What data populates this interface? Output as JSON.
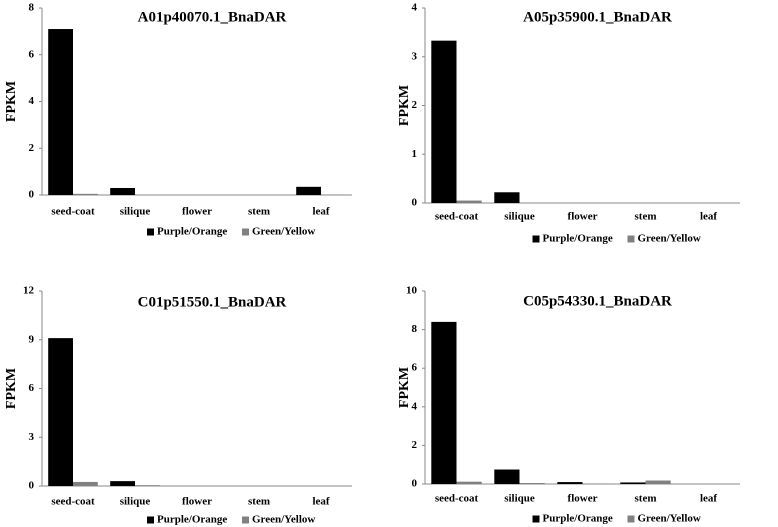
{
  "chart_data": [
    {
      "type": "bar",
      "title": "A01p40070.1_BnaDAR",
      "y_label": "FPKM",
      "categories": [
        "seed-coat",
        "silique",
        "flower",
        "stem",
        "leaf"
      ],
      "series": [
        {
          "name": "Purple/Orange",
          "color": "#000000",
          "values": [
            7.1,
            0.3,
            0,
            0,
            0.35
          ]
        },
        {
          "name": "Green/Yellow",
          "color": "#808080",
          "values": [
            0.05,
            0,
            0,
            0,
            0.02
          ]
        }
      ],
      "ylim": [
        0,
        8
      ],
      "yticks": [
        0,
        2,
        4,
        6,
        8
      ],
      "legend": "bottom"
    },
    {
      "type": "bar",
      "title": "A05p35900.1_BnaDAR",
      "y_label": "FPKM",
      "categories": [
        "seed-coat",
        "silique",
        "flower",
        "stem",
        "leaf"
      ],
      "series": [
        {
          "name": "Purple/Orange",
          "color": "#000000",
          "values": [
            3.33,
            0.22,
            0,
            0,
            0
          ]
        },
        {
          "name": "Green/Yellow",
          "color": "#808080",
          "values": [
            0.05,
            0,
            0,
            0,
            0
          ]
        }
      ],
      "ylim": [
        0,
        4
      ],
      "yticks": [
        0,
        1,
        2,
        3,
        4
      ],
      "legend": "bottom"
    },
    {
      "type": "bar",
      "title": "C01p51550.1_BnaDAR",
      "y_label": "FPKM",
      "categories": [
        "seed-coat",
        "silique",
        "flower",
        "stem",
        "leaf"
      ],
      "series": [
        {
          "name": "Purple/Orange",
          "color": "#000000",
          "values": [
            9.1,
            0.3,
            0,
            0,
            0
          ]
        },
        {
          "name": "Green/Yellow",
          "color": "#808080",
          "values": [
            0.25,
            0.05,
            0,
            0,
            0
          ]
        }
      ],
      "ylim": [
        0,
        12
      ],
      "yticks": [
        0,
        3,
        6,
        9,
        12
      ],
      "legend": "bottom"
    },
    {
      "type": "bar",
      "title": "C05p54330.1_BnaDAR",
      "y_label": "FPKM",
      "categories": [
        "seed-coat",
        "silique",
        "flower",
        "stem",
        "leaf"
      ],
      "series": [
        {
          "name": "Purple/Orange",
          "color": "#000000",
          "values": [
            8.4,
            0.75,
            0.1,
            0.08,
            0
          ]
        },
        {
          "name": "Green/Yellow",
          "color": "#808080",
          "values": [
            0.12,
            0.05,
            0.02,
            0.18,
            0
          ]
        }
      ],
      "ylim": [
        0,
        10
      ],
      "yticks": [
        0,
        2,
        4,
        6,
        8,
        10
      ],
      "legend": "bottom"
    }
  ]
}
